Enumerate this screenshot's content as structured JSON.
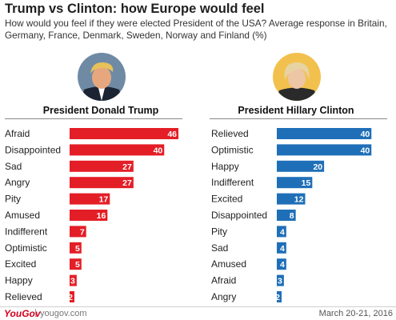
{
  "title": "Trump vs Clinton: how Europe would feel",
  "subtitle": "How would you feel if they were elected President of the USA? Average response in Britain, Germany, France, Denmark, Sweden, Norway and Finland (%)",
  "colors": {
    "trump": "#e41e26",
    "clinton": "#1f6fb8"
  },
  "chart_data": [
    {
      "type": "bar",
      "title": "President Donald Trump",
      "categories": [
        "Afraid",
        "Disappointed",
        "Sad",
        "Angry",
        "Pity",
        "Amused",
        "Indifferent",
        "Optimistic",
        "Excited",
        "Happy",
        "Relieved"
      ],
      "values": [
        46,
        40,
        27,
        27,
        17,
        16,
        7,
        5,
        5,
        3,
        2
      ]
    },
    {
      "type": "bar",
      "title": "President Hillary Clinton",
      "categories": [
        "Relieved",
        "Optimistic",
        "Happy",
        "Indifferent",
        "Excited",
        "Disappointed",
        "Pity",
        "Sad",
        "Amused",
        "Afraid",
        "Angry"
      ],
      "values": [
        40,
        40,
        20,
        15,
        12,
        8,
        4,
        4,
        4,
        3,
        2
      ]
    }
  ],
  "footer": {
    "logo": "YouGov",
    "separator": "|",
    "site": "yougov.com",
    "date": "March 20-21, 2016"
  }
}
